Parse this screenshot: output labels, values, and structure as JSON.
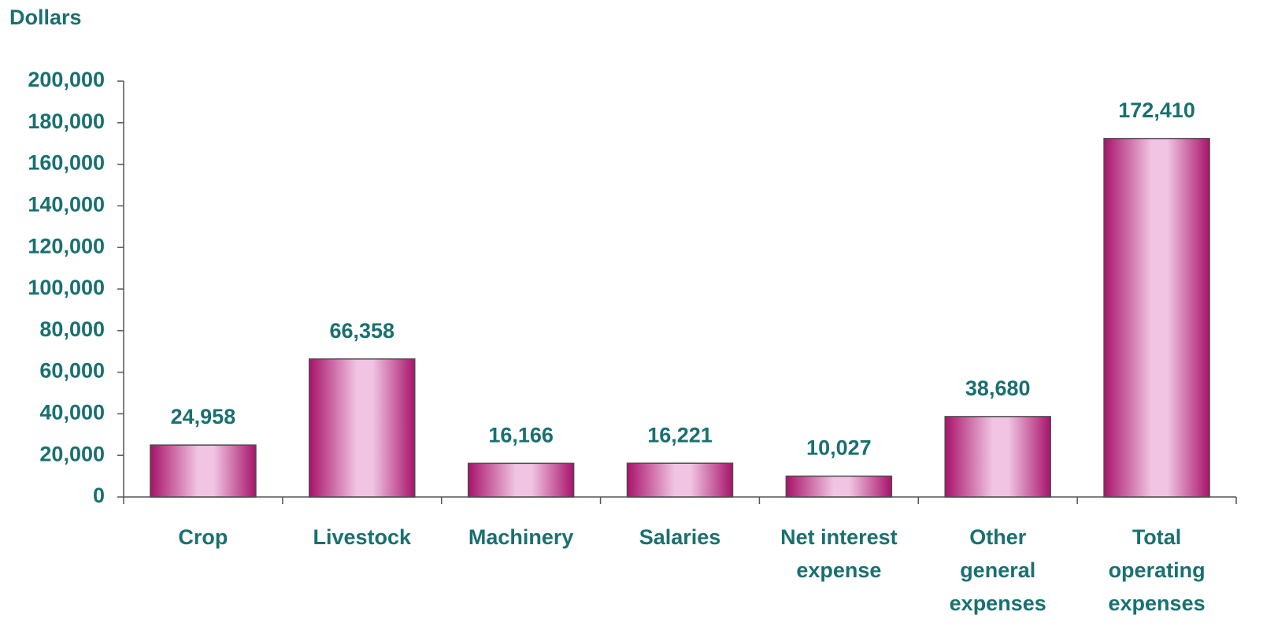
{
  "chart_data": {
    "type": "bar",
    "y_axis_label": "Dollars",
    "categories": [
      [
        "Crop"
      ],
      [
        "Livestock"
      ],
      [
        "Machinery"
      ],
      [
        "Salaries"
      ],
      [
        "Net interest",
        "expense"
      ],
      [
        "Other",
        "general",
        "expenses"
      ],
      [
        "Total",
        "operating",
        "expenses"
      ]
    ],
    "values": [
      24958,
      66358,
      16166,
      16221,
      10027,
      38680,
      172410
    ],
    "value_labels": [
      "24,958",
      "66,358",
      "16,166",
      "16,221",
      "10,027",
      "38,680",
      "172,410"
    ],
    "color": "#b0176f",
    "ylim": [
      0,
      200000
    ],
    "yticks": [
      0,
      {
        "value": 20000,
        "label": "20,000"
      },
      {
        "value": 40000,
        "label": "40,000"
      },
      {
        "value": 60000,
        "label": "60,000"
      },
      {
        "value": 80000,
        "label": "80,000"
      },
      {
        "value": 100000,
        "label": "100,000"
      },
      {
        "value": 120000,
        "label": "120,000"
      },
      {
        "value": 140000,
        "label": "140,000"
      },
      {
        "value": 160000,
        "label": "160,000"
      },
      {
        "value": 180000,
        "label": "180,000"
      },
      {
        "value": 200000,
        "label": "200,000"
      }
    ],
    "grid": false
  }
}
